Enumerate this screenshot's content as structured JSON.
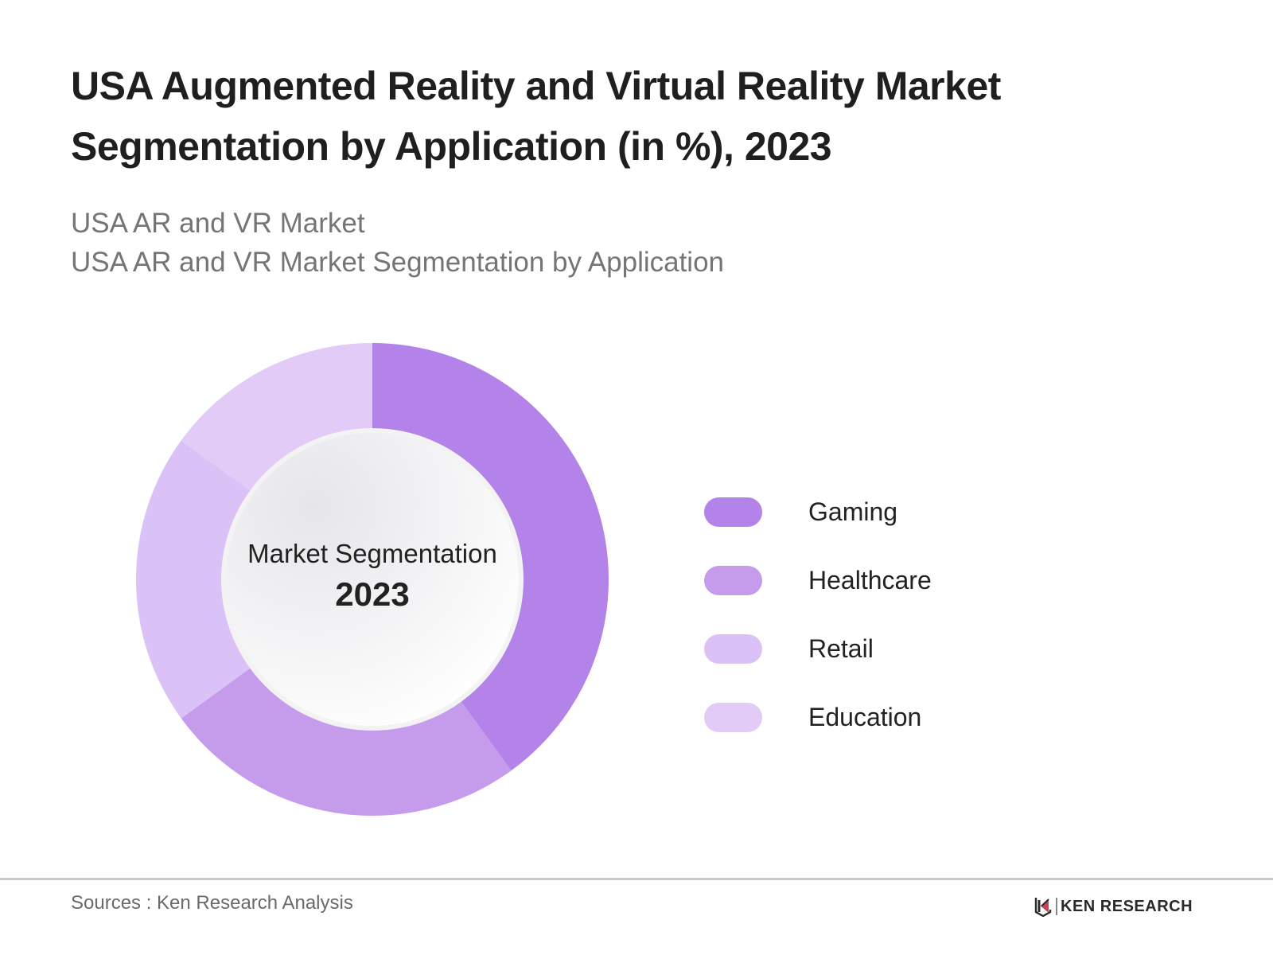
{
  "header": {
    "title": "USA Augmented Reality and Virtual Reality Market Segmentation by Application (in %), 2023",
    "subtitle_line1": "USA AR and VR Market",
    "subtitle_line2": "USA AR and VR Market Segmentation by Application"
  },
  "center_label": {
    "line1": "Market Segmentation",
    "line2": "2023"
  },
  "legend": [
    {
      "label": "Gaming",
      "color": "#B383E9"
    },
    {
      "label": "Healthcare",
      "color": "#C59CEC"
    },
    {
      "label": "Retail",
      "color": "#DBC2F6"
    },
    {
      "label": "Education",
      "color": "#E2CCF7"
    }
  ],
  "footer": {
    "source": "Sources : Ken Research Analysis",
    "logo_text": "KEN RESEARCH"
  },
  "chart_data": {
    "type": "pie",
    "subtype": "donut",
    "title": "USA Augmented Reality and Virtual Reality Market Segmentation by Application (in %), 2023",
    "subtitle": [
      "USA AR and VR Market",
      "USA AR and VR Market Segmentation by Application"
    ],
    "center_text": [
      "Market Segmentation",
      "2023"
    ],
    "categories": [
      "Gaming",
      "Healthcare",
      "Retail",
      "Education"
    ],
    "values": [
      40,
      25,
      20,
      15
    ],
    "unit": "%",
    "colors": [
      "#B383E9",
      "#C59CEC",
      "#DBC2F6",
      "#E2CCF7"
    ],
    "start_angle_deg": 0,
    "direction": "clockwise",
    "legend_position": "right",
    "data_labels": false,
    "source": "Sources : Ken Research Analysis"
  }
}
